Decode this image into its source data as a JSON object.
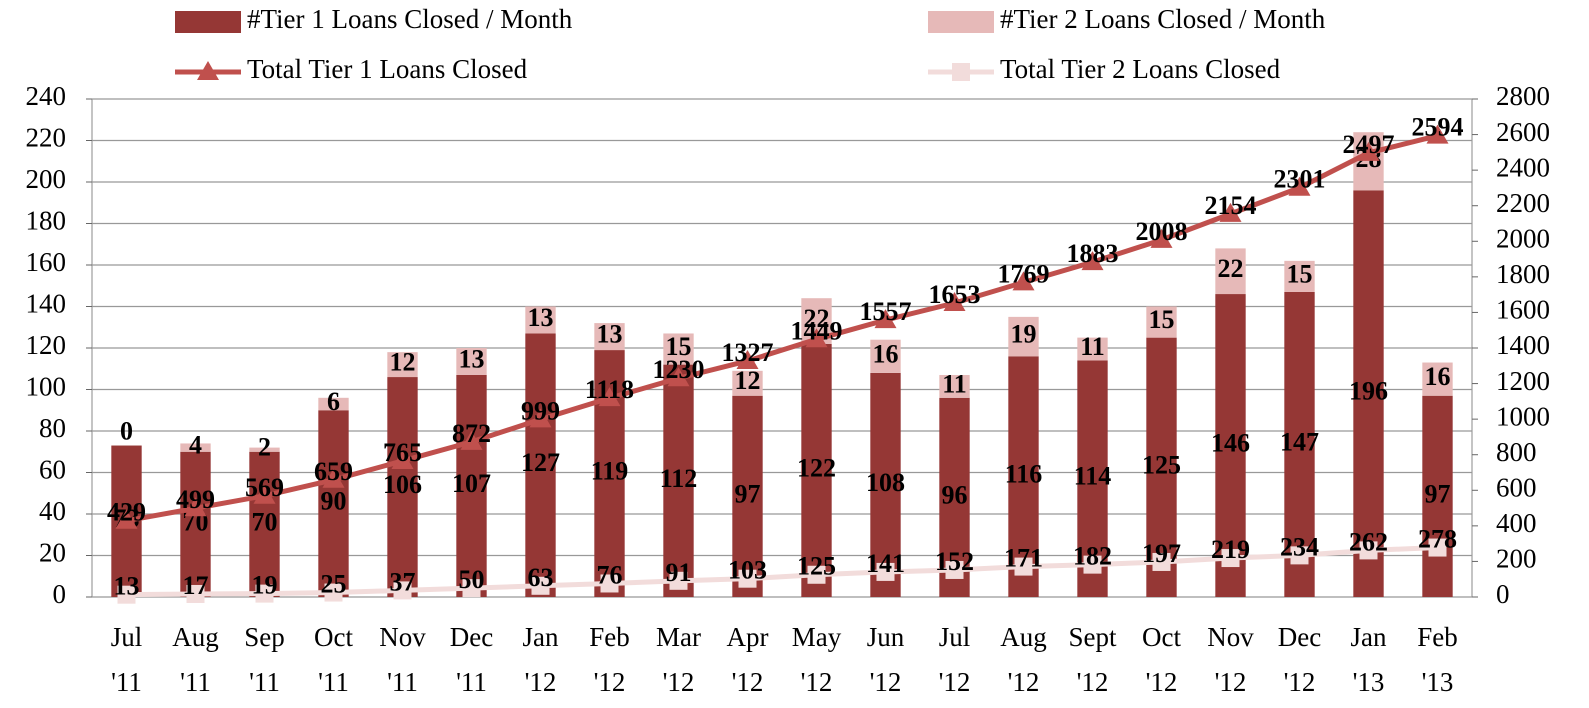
{
  "chart_data": {
    "type": "bar-line",
    "categories": [
      "Jul '11",
      "Aug '11",
      "Sep '11",
      "Oct '11",
      "Nov '11",
      "Dec '11",
      "Jan '12",
      "Feb '12",
      "Mar '12",
      "Apr '12",
      "May '12",
      "Jun '12",
      "Jul '12",
      "Aug '12",
      "Sept '12",
      "Oct '12",
      "Nov '12",
      "Dec '12",
      "Jan '13",
      "Feb '13"
    ],
    "series": [
      {
        "name": "#Tier 1 Loans Closed / Month",
        "type": "bar",
        "color": "#953735",
        "values": [
          73,
          70,
          70,
          90,
          106,
          107,
          127,
          119,
          112,
          97,
          122,
          108,
          96,
          116,
          114,
          125,
          146,
          147,
          196,
          97
        ]
      },
      {
        "name": "#Tier 2 Loans Closed / Month",
        "type": "bar",
        "color": "#e6b9b8",
        "values": [
          0,
          4,
          2,
          6,
          12,
          13,
          13,
          13,
          15,
          12,
          22,
          16,
          11,
          19,
          11,
          15,
          22,
          15,
          28,
          16
        ]
      },
      {
        "name": "Total Tier 1 Loans Closed",
        "type": "line",
        "marker": "triangle",
        "axis": "y2",
        "color": "#c0504d",
        "values": [
          429,
          499,
          569,
          659,
          765,
          872,
          999,
          1118,
          1230,
          1327,
          1449,
          1557,
          1653,
          1769,
          1883,
          2008,
          2154,
          2301,
          2497,
          2594
        ]
      },
      {
        "name": "Total Tier 2 Loans Closed",
        "type": "line",
        "marker": "square",
        "axis": "y2",
        "color": "#f2dcdb",
        "values": [
          13,
          17,
          19,
          25,
          37,
          50,
          63,
          76,
          91,
          103,
          125,
          141,
          152,
          171,
          182,
          197,
          219,
          234,
          262,
          278
        ]
      }
    ],
    "stacked": true,
    "ylim": [
      0,
      240
    ],
    "yticks": [
      0,
      20,
      40,
      60,
      80,
      100,
      120,
      140,
      160,
      180,
      200,
      220,
      240
    ],
    "y2lim": [
      0,
      2800
    ],
    "y2ticks": [
      0,
      200,
      400,
      600,
      800,
      1000,
      1200,
      1400,
      1600,
      1800,
      2000,
      2200,
      2400,
      2600,
      2800
    ],
    "grid": true
  }
}
